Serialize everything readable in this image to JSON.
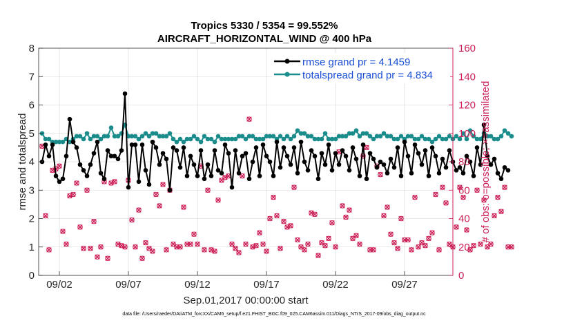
{
  "colors": {
    "rmse": "#000000",
    "spread": "#1a8c8c",
    "obs": "#cc1f55",
    "legend_text": "#1a4fd6",
    "axis": "#262626"
  },
  "chart_data": {
    "type": "line",
    "title_line1": "Tropics 5330 / 5354 = 99.552%",
    "title_line2": "AIRCRAFT_HORIZONTAL_WIND @ 400 hPa",
    "ylabel_left": "rmse and totalspread",
    "ylabel_right": "# of obs: o=possible; ×=assimilated",
    "xlabel": "Sep.01,2017 00:00:00 start",
    "footer": "data file: /Users/raeder/DAI/ATM_forcXX/CAM6_setup/f.e21.FHIST_BGC.f09_025.CAM6assim.011/Diags_NTrS_2017-09/obs_diag_output.nc",
    "ylim_left": [
      0,
      8
    ],
    "ylim_right": [
      0,
      160
    ],
    "xlim_days": [
      0.5,
      30.5
    ],
    "left_ticks": [
      "0",
      "1",
      "2",
      "3",
      "4",
      "5",
      "6",
      "7",
      "8"
    ],
    "right_ticks": [
      "0",
      "20",
      "40",
      "60",
      "80",
      "100",
      "120",
      "140",
      "160"
    ],
    "x_ticks": [
      {
        "day": 2,
        "label": "09/02"
      },
      {
        "day": 7,
        "label": "09/07"
      },
      {
        "day": 12,
        "label": "09/12"
      },
      {
        "day": 17,
        "label": "09/17"
      },
      {
        "day": 22,
        "label": "09/22"
      },
      {
        "day": 27,
        "label": "09/27"
      }
    ],
    "legend": [
      {
        "name": "rmse",
        "label": "rmse grand pr = 4.1459"
      },
      {
        "name": "totalspread",
        "label": "totalspread grand pr = 4.834"
      }
    ],
    "x_start": 0.75,
    "x_step": 0.25,
    "series": [
      {
        "name": "rmse",
        "values": [
          4.0,
          4.6,
          4.2,
          4.6,
          3.5,
          3.3,
          3.4,
          4.2,
          5.5,
          4.7,
          4.5,
          3.9,
          3.7,
          3.5,
          3.9,
          4.3,
          4.7,
          3.6,
          3.4,
          4.4,
          4.2,
          4.2,
          4.1,
          4.4,
          6.4,
          3.1,
          4.6,
          4.6,
          3.3,
          4.6,
          3.7,
          3.2,
          4.7,
          4.5,
          3.9,
          4.3,
          4.1,
          3.0,
          4.5,
          4.4,
          3.8,
          4.5,
          3.5,
          4.2,
          3.9,
          3.5,
          4.4,
          3.4,
          3.9,
          3.5,
          4.4,
          3.7,
          3.6,
          4.6,
          4.3,
          3.1,
          4.4,
          3.6,
          4.2,
          4.3,
          3.4,
          4.0,
          4.5,
          3.5,
          4.6,
          4.2,
          4.0,
          3.5,
          4.7,
          3.8,
          4.5,
          4.2,
          3.9,
          4.5,
          3.6,
          4.7,
          4.0,
          3.7,
          4.4,
          4.2,
          3.4,
          4.3,
          3.9,
          4.6,
          3.7,
          4.3,
          3.9,
          4.4,
          4.2,
          3.7,
          4.5,
          4.1,
          3.5,
          4.6,
          3.4,
          4.3,
          4.1,
          3.8,
          4.0,
          3.9,
          3.6,
          4.1,
          3.8,
          4.5,
          3.5,
          4.7,
          4.2,
          3.6,
          4.6,
          4.3,
          3.9,
          4.4,
          3.5,
          4.5,
          4.2,
          3.6,
          4.1,
          3.8,
          4.4,
          4.0,
          3.7,
          3.8,
          3.6,
          4.2,
          4.0,
          3.5,
          4.5,
          3.9,
          5.3,
          4.2,
          3.9,
          4.1,
          3.6,
          3.4,
          3.8,
          3.7
        ]
      },
      {
        "name": "totalspread",
        "values": [
          5.0,
          4.8,
          4.8,
          4.7,
          4.7,
          4.7,
          4.7,
          4.8,
          4.7,
          4.8,
          4.9,
          4.9,
          4.8,
          5.0,
          4.8,
          4.9,
          4.9,
          4.8,
          4.9,
          4.9,
          5.2,
          4.9,
          4.9,
          5.0,
          5.3,
          4.9,
          4.9,
          4.9,
          4.8,
          4.9,
          5.0,
          4.9,
          5.0,
          5.0,
          4.9,
          4.9,
          4.9,
          5.0,
          4.8,
          4.7,
          4.8,
          4.7,
          4.8,
          4.8,
          4.9,
          4.8,
          4.7,
          4.9,
          4.8,
          4.8,
          4.7,
          4.9,
          4.8,
          4.8,
          4.8,
          4.8,
          4.8,
          4.9,
          4.9,
          4.8,
          4.9,
          4.9,
          4.8,
          4.8,
          4.8,
          4.9,
          4.9,
          4.9,
          4.8,
          4.9,
          4.8,
          4.9,
          4.8,
          4.9,
          5.1,
          5.0,
          5.0,
          4.9,
          4.9,
          4.8,
          4.8,
          4.8,
          5.0,
          4.8,
          4.8,
          4.8,
          4.9,
          4.9,
          4.9,
          5.0,
          5.0,
          5.1,
          4.9,
          5.0,
          5.0,
          4.9,
          4.8,
          4.9,
          4.9,
          5.0,
          4.9,
          4.9,
          4.8,
          4.8,
          4.9,
          4.8,
          4.9,
          4.9,
          4.8,
          4.8,
          4.9,
          4.8,
          4.8,
          4.7,
          4.8,
          4.9,
          4.8,
          4.8,
          4.9,
          4.8,
          4.9,
          4.8,
          5.0,
          4.8,
          5.1,
          4.9,
          4.8,
          4.8,
          5.0,
          4.9,
          4.9,
          4.8,
          4.8,
          4.9,
          5.1,
          5.0,
          4.9
        ]
      },
      {
        "name": "obs_count",
        "values": [
          91,
          42,
          18,
          74,
          75,
          77,
          31,
          22,
          56,
          57,
          65,
          34,
          19,
          60,
          19,
          38,
          13,
          20,
          66,
          12,
          65,
          66,
          22,
          21,
          20,
          67,
          39,
          20,
          46,
          12,
          23,
          19,
          17,
          57,
          49,
          64,
          18,
          60,
          22,
          20,
          20,
          48,
          22,
          22,
          29,
          22,
          77,
          18,
          60,
          18,
          17,
          53,
          67,
          69,
          70,
          22,
          19,
          16,
          70,
          22,
          110,
          20,
          21,
          30,
          22,
          17,
          40,
          55,
          42,
          19,
          38,
          34,
          35,
          62,
          25,
          20,
          18,
          22,
          44,
          43,
          14,
          23,
          21,
          26,
          37,
          20,
          87,
          49,
          41,
          46,
          26,
          28,
          22,
          84,
          90,
          18,
          18,
          77,
          71,
          42,
          48,
          29,
          23,
          19,
          40,
          25,
          25,
          18,
          55,
          20,
          23,
          21,
          26,
          30,
          57,
          18,
          62,
          51,
          22,
          20,
          34,
          62,
          55,
          32,
          18,
          21,
          60,
          22,
          53,
          20,
          22,
          42,
          55,
          45,
          62,
          20,
          20
        ]
      }
    ]
  }
}
